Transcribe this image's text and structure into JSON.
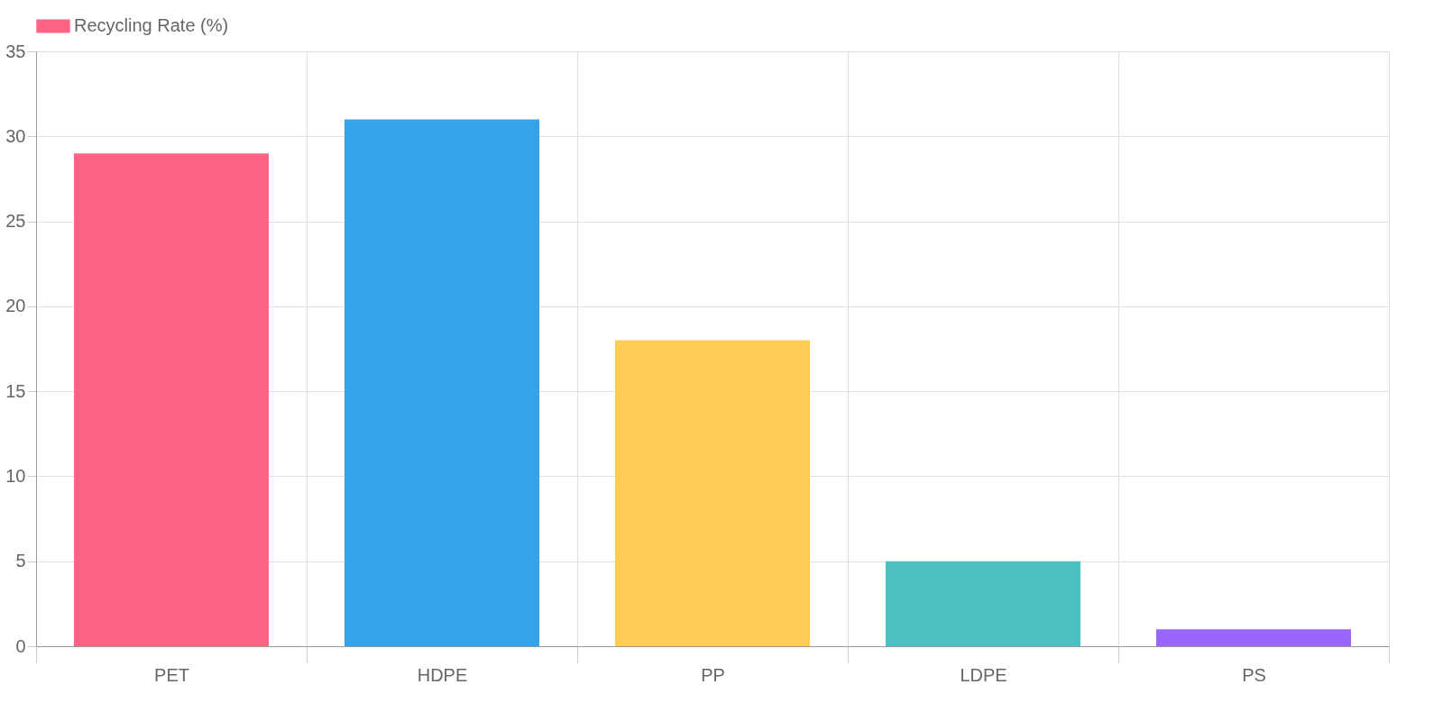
{
  "chart_data": {
    "type": "bar",
    "categories": [
      "PET",
      "HDPE",
      "PP",
      "LDPE",
      "PS"
    ],
    "series": [
      {
        "name": "Recycling Rate (%)",
        "colors": [
          "#ff6384",
          "#36a2eb",
          "#ffcd56",
          "#4bc0c0",
          "#9966ff"
        ],
        "values": [
          29,
          31,
          18,
          5,
          1
        ]
      }
    ],
    "ylim": [
      0,
      35
    ],
    "yticks": [
      0,
      5,
      10,
      15,
      20,
      25,
      30,
      35
    ],
    "grid": true,
    "legend": "top"
  }
}
